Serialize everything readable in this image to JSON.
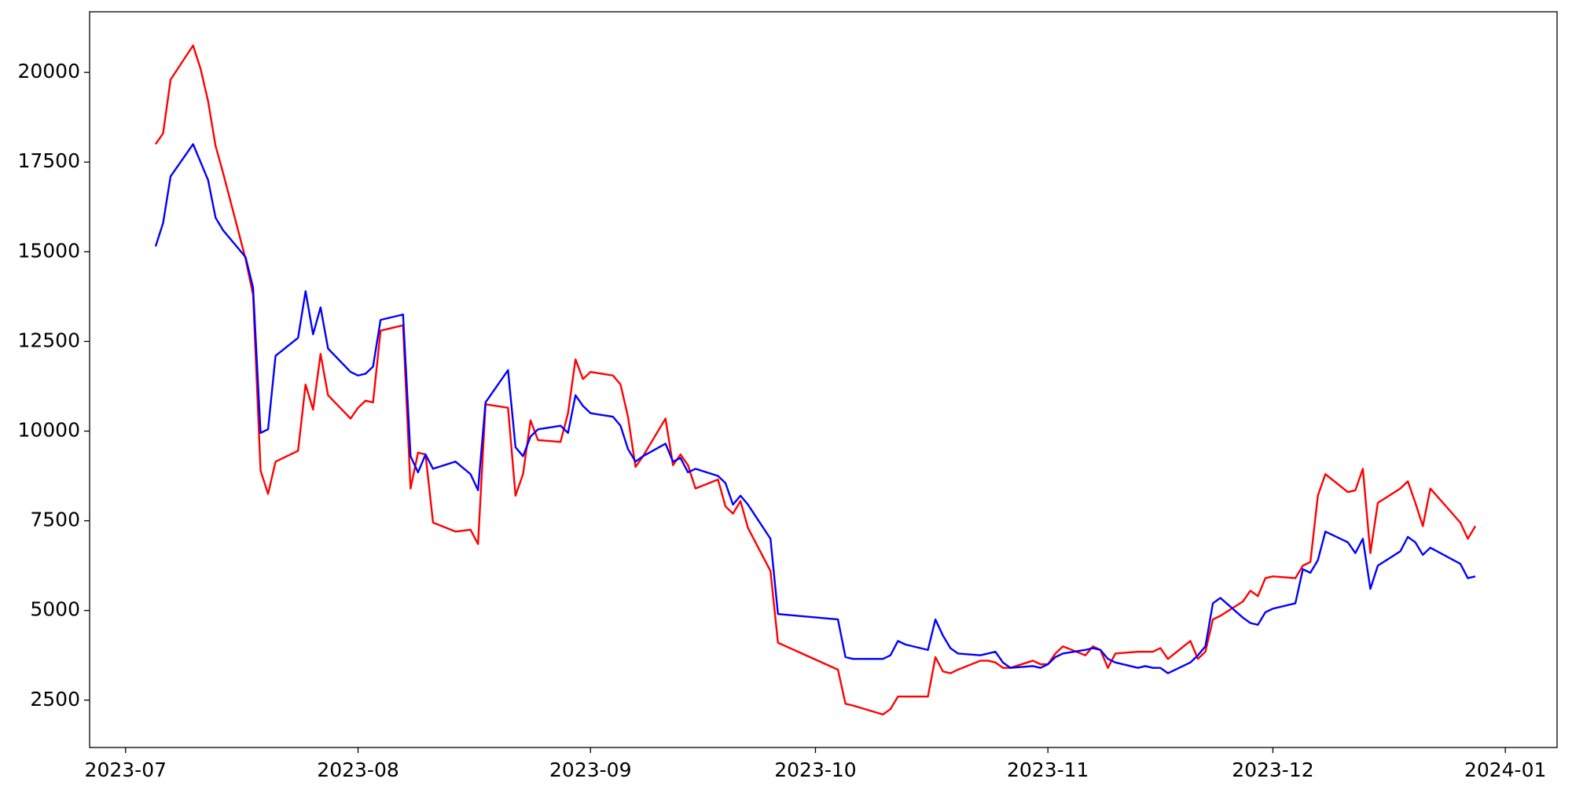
{
  "chart_data": {
    "type": "line",
    "x": [
      19543,
      19544,
      19545,
      19548,
      19549,
      19550,
      19551,
      19552,
      19555,
      19556,
      19557,
      19558,
      19559,
      19562,
      19563,
      19564,
      19565,
      19566,
      19569,
      19570,
      19571,
      19572,
      19573,
      19576,
      19577,
      19578,
      19579,
      19580,
      19583,
      19585,
      19586,
      19587,
      19590,
      19591,
      19592,
      19593,
      19594,
      19597,
      19598,
      19599,
      19600,
      19601,
      19604,
      19605,
      19606,
      19607,
      19608,
      19611,
      19612,
      19613,
      19614,
      19615,
      19618,
      19619,
      19620,
      19621,
      19622,
      19625,
      19626,
      19634,
      19635,
      19636,
      19640,
      19641,
      19642,
      19643,
      19646,
      19647,
      19648,
      19649,
      19650,
      19653,
      19654,
      19655,
      19656,
      19657,
      19660,
      19661,
      19662,
      19663,
      19664,
      19667,
      19668,
      19669,
      19670,
      19671,
      19674,
      19675,
      19676,
      19677,
      19678,
      19681,
      19682,
      19683,
      19684,
      19685,
      19688,
      19689,
      19690,
      19691,
      19692,
      19695,
      19696,
      19697,
      19698,
      19699,
      19702,
      19703,
      19704,
      19705,
      19706,
      19709,
      19710,
      19711,
      19712,
      19713,
      19717,
      19718,
      19719
    ],
    "series": [
      {
        "color": "#ff0000",
        "values": [
          18000,
          18300,
          19800,
          20750,
          20100,
          19200,
          17950,
          17200,
          14800,
          13800,
          8900,
          8250,
          9150,
          9450,
          11300,
          10600,
          12150,
          11000,
          10350,
          10650,
          10850,
          10800,
          12800,
          12950,
          8400,
          9400,
          9350,
          7450,
          7200,
          7250,
          6850,
          10750,
          10650,
          8200,
          8800,
          10300,
          9750,
          9700,
          10500,
          12000,
          11450,
          11650,
          11550,
          11300,
          10400,
          9000,
          9300,
          10350,
          9050,
          9350,
          9050,
          8400,
          8650,
          7900,
          7700,
          8050,
          7300,
          6100,
          4100,
          3350,
          2400,
          2350,
          2100,
          2250,
          2600,
          2600,
          2600,
          3700,
          3300,
          3250,
          3350,
          3600,
          3600,
          3550,
          3400,
          3400,
          3600,
          3500,
          3500,
          3800,
          4000,
          3750,
          4000,
          3900,
          3400,
          3800,
          3850,
          3850,
          3850,
          3950,
          3650,
          4150,
          3650,
          3850,
          4750,
          4850,
          5250,
          5550,
          5400,
          5900,
          5950,
          5900,
          6250,
          6350,
          8200,
          8800,
          8300,
          8350,
          8950,
          6600,
          8000,
          8400,
          8600,
          8000,
          7350,
          8400,
          7450,
          7000,
          7350
        ]
      },
      {
        "color": "#0000ff",
        "values": [
          15150,
          15800,
          17100,
          18000,
          17500,
          17000,
          15950,
          15600,
          14850,
          14000,
          9950,
          10050,
          12100,
          12600,
          13900,
          12700,
          13450,
          12300,
          11650,
          11550,
          11600,
          11800,
          13100,
          13250,
          9300,
          8850,
          9350,
          8950,
          9150,
          8800,
          8350,
          10800,
          11700,
          9550,
          9300,
          9850,
          10050,
          10150,
          9950,
          11000,
          10700,
          10500,
          10400,
          10150,
          9500,
          9150,
          9300,
          9650,
          9150,
          9250,
          8850,
          8950,
          8750,
          8550,
          7950,
          8200,
          7950,
          7000,
          4900,
          4750,
          3700,
          3650,
          3650,
          3750,
          4150,
          4050,
          3900,
          4750,
          4300,
          3950,
          3800,
          3750,
          3800,
          3850,
          3550,
          3400,
          3450,
          3400,
          3500,
          3700,
          3800,
          3900,
          3950,
          3900,
          3650,
          3550,
          3400,
          3450,
          3400,
          3400,
          3250,
          3550,
          3750,
          4000,
          5200,
          5350,
          4800,
          4650,
          4600,
          4950,
          5050,
          5200,
          6150,
          6050,
          6400,
          7200,
          6900,
          6600,
          7000,
          5600,
          6250,
          6650,
          7050,
          6900,
          6550,
          6750,
          6300,
          5900,
          5950
        ]
      }
    ],
    "xlim": [
      19534.2,
      19729.9
    ],
    "xticks": [
      {
        "value": 19539,
        "label": "2023-07"
      },
      {
        "value": 19570,
        "label": "2023-08"
      },
      {
        "value": 19601,
        "label": "2023-09"
      },
      {
        "value": 19631,
        "label": "2023-10"
      },
      {
        "value": 19662,
        "label": "2023-11"
      },
      {
        "value": 19692,
        "label": "2023-12"
      },
      {
        "value": 19723,
        "label": "2024-01"
      }
    ],
    "ylim": [
      1180,
      21690
    ],
    "yticks": [
      2500,
      5000,
      7500,
      10000,
      12500,
      15000,
      17500,
      20000
    ]
  }
}
